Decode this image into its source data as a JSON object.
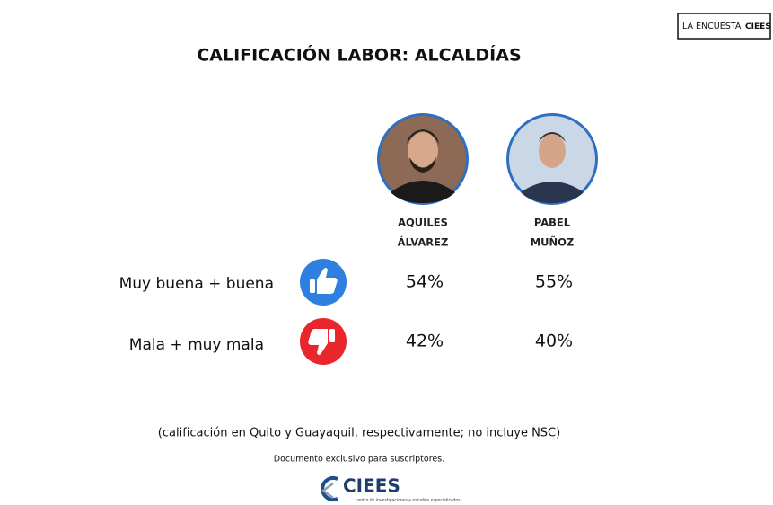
{
  "badge": {
    "left": "LA ENCUESTA",
    "right": "CIEES"
  },
  "title": "CALIFICACIÓN LABOR: ALCALDÍAS",
  "candidates": [
    {
      "name_line1": "AQUILES",
      "name_line2": "ÁLVAREZ"
    },
    {
      "name_line1": "PABEL",
      "name_line2": "MUÑOZ"
    }
  ],
  "rows": [
    {
      "label": "Muy buena + buena",
      "values": [
        "54%",
        "55%"
      ]
    },
    {
      "label": "Mala + muy mala",
      "values": [
        "42%",
        "40%"
      ]
    }
  ],
  "note": "(calificación en Quito y Guayaquil, respectivamente;  no incluye NSC)",
  "footer": "Documento exclusivo para suscriptores.",
  "logo": {
    "name": "CIEES",
    "tagline": "centro de investigaciones y estudios especializados"
  }
}
